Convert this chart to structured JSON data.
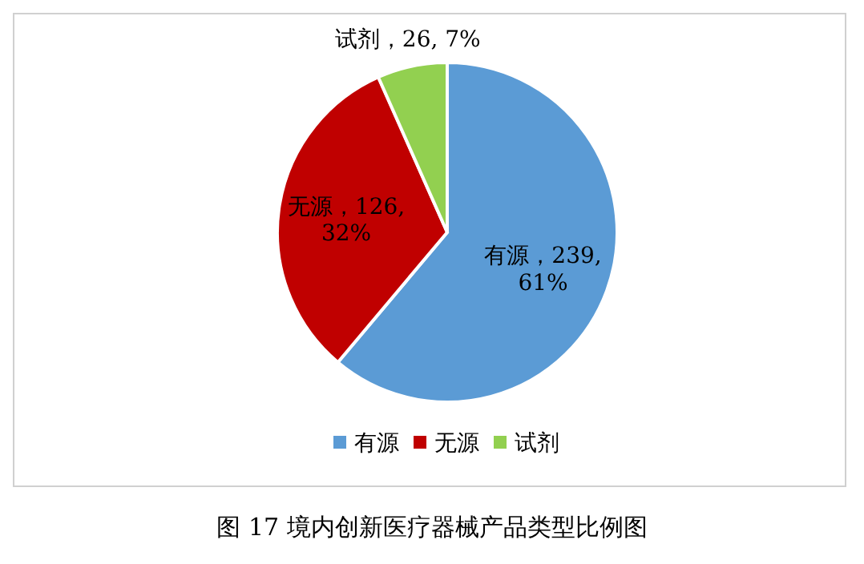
{
  "chart_data": {
    "type": "pie",
    "title": "图 17  境内创新医疗器械产品类型比例图",
    "categories": [
      "有源",
      "无源",
      "试剂"
    ],
    "values": [
      239,
      126,
      26
    ],
    "colors": [
      "#5b9bd5",
      "#c00000",
      "#92d050"
    ],
    "value_labels": [
      "有源，239, 61%",
      "无源，126, 32%",
      "试剂，26, 7%"
    ],
    "legend": "bottom"
  }
}
